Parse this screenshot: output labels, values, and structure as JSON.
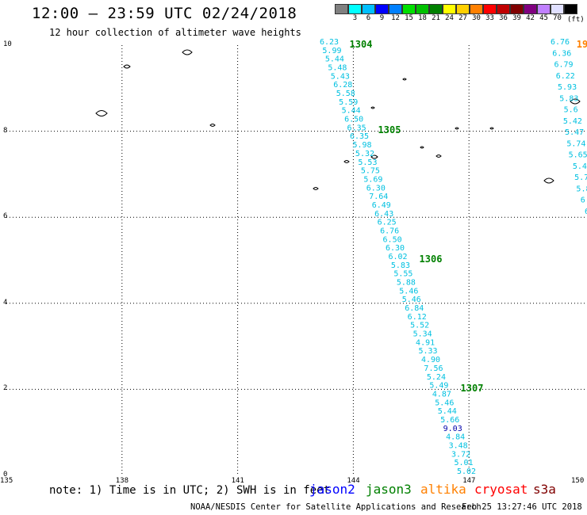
{
  "header": {
    "title": "12:00 – 23:59 UTC 02/24/2018",
    "subtitle": "12 hour collection of altimeter wave heights"
  },
  "legend": {
    "unit": "(ft)",
    "items": [
      {
        "label": "",
        "color": "#808080"
      },
      {
        "label": "3",
        "color": "#00ffff"
      },
      {
        "label": "6",
        "color": "#00bfff"
      },
      {
        "label": "9",
        "color": "#0000ff"
      },
      {
        "label": "12",
        "color": "#0080ff"
      },
      {
        "label": "15",
        "color": "#00e000"
      },
      {
        "label": "18",
        "color": "#00c000"
      },
      {
        "label": "21",
        "color": "#008000"
      },
      {
        "label": "24",
        "color": "#ffff00"
      },
      {
        "label": "27",
        "color": "#ffd000"
      },
      {
        "label": "30",
        "color": "#ff8000"
      },
      {
        "label": "33",
        "color": "#ff0000"
      },
      {
        "label": "36",
        "color": "#c00000"
      },
      {
        "label": "39",
        "color": "#800000"
      },
      {
        "label": "42",
        "color": "#800080"
      },
      {
        "label": "45",
        "color": "#c080ff"
      },
      {
        "label": "70",
        "color": "#e0e0ff"
      },
      {
        "label": "",
        "color": "#000000"
      }
    ]
  },
  "axes": {
    "lat_ticks": [
      "0",
      "2",
      "4",
      "6",
      "8",
      "10"
    ],
    "lon_ticks": [
      "135",
      "138",
      "141",
      "144",
      "147",
      "150"
    ]
  },
  "track_a": {
    "color": "#00c0e0",
    "values": [
      "6.23",
      "5.99",
      "5.44",
      "5.48",
      "5.43",
      "6.28",
      "5.58",
      "5.59",
      "5.44",
      "6.50",
      "6.35",
      "6.35",
      "5.98",
      "5.32",
      "5.53",
      "5.75",
      "5.69",
      "6.30",
      "7.64",
      "6.49",
      "6.43",
      "6.25",
      "6.76",
      "6.50",
      "6.30",
      "6.02",
      "5.83",
      "5.55",
      "5.88",
      "5.46",
      "5.46",
      "6.84",
      "6.12",
      "5.52",
      "5.34",
      "4.91",
      "5.33",
      "4.90",
      "7.56",
      "5.24",
      "5.49",
      "4.87",
      "5.46",
      "5.44",
      "5.66",
      "9.03",
      "4.84",
      "3.48",
      "3.72",
      "5.01",
      "5.02"
    ],
    "highlight_index": 45,
    "highlight_color": "#0000aa"
  },
  "track_b": {
    "color": "#00c0e0",
    "values": [
      "6.76",
      "6.36",
      "6.79",
      "6.22",
      "5.93",
      "5.83",
      "5.6",
      "5.42",
      "5.47",
      "5.74",
      "5.65",
      "5.4",
      "5.7",
      "5.8",
      "6.",
      "6"
    ]
  },
  "time_labels": [
    {
      "text": "1304",
      "color": "#008000"
    },
    {
      "text": "1305",
      "color": "#008000"
    },
    {
      "text": "1306",
      "color": "#008000"
    },
    {
      "text": "1307",
      "color": "#008000"
    },
    {
      "text": "19",
      "color": "#ff8000"
    }
  ],
  "footer": {
    "note": "note: 1) Time is in UTC; 2) SWH is in feet",
    "satellites": [
      {
        "name": "jason2",
        "color": "#0000ff"
      },
      {
        "name": "jason3",
        "color": "#008000"
      },
      {
        "name": "altika",
        "color": "#ff8000"
      },
      {
        "name": "cryosat",
        "color": "#ff0000"
      },
      {
        "name": "s3a",
        "color": "#800000"
      }
    ],
    "credit": "NOAA/NESDIS Center for Satellite Applications and Research",
    "timestamp": "Feb 25 13:27:46 UTC 2018"
  }
}
